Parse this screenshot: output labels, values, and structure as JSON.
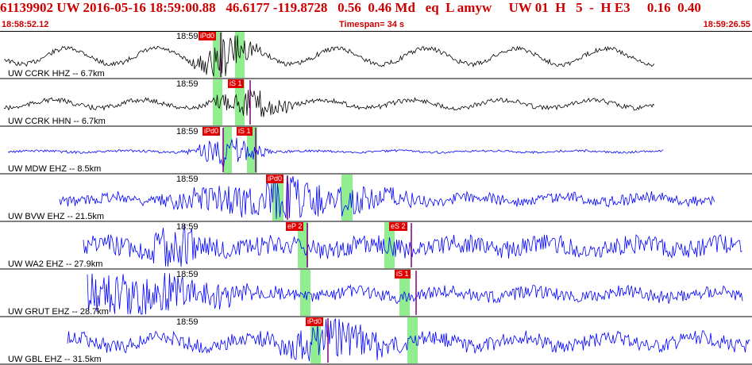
{
  "header": {
    "event_line": "61139902 UW 2016-05-16 18:59:00.88   46.6177 -119.8728   0.56  0.46 Md   eq  L amyw     UW 01  H   5  -  H E3     0.16  0.40",
    "start_time": "18:58:52.12",
    "timespan": "Timespan=  34 s",
    "end_time": "18:59:26.55"
  },
  "colors": {
    "header": "#cc0000",
    "trace_hz": "#000000",
    "trace_ehz": "#0000ff",
    "pick": "#e00000",
    "window": "#90ee90",
    "pick_line": "#800080"
  },
  "traces": [
    {
      "label": "UW CCRK HHZ -- 6.7km",
      "time": "18:59",
      "color": "#000000",
      "picks": [
        {
          "label": "iPd0"
        }
      ]
    },
    {
      "label": "UW CCRK HHN -- 6.7km",
      "time": "18:59",
      "color": "#000000",
      "picks": [
        {
          "label": "iS 1"
        }
      ]
    },
    {
      "label": "UW MDW EHZ -- 8.5km",
      "time": "18:59",
      "color": "#0000ff",
      "picks": [
        {
          "label": "iPd0"
        },
        {
          "label": "iS 1"
        }
      ]
    },
    {
      "label": "UW BVW EHZ -- 21.5km",
      "time": "18:59",
      "color": "#0000ff",
      "picks": [
        {
          "label": "iPd0"
        }
      ]
    },
    {
      "label": "UW WA2 EHZ -- 27.9km",
      "time": "18:59",
      "color": "#0000ff",
      "picks": [
        {
          "label": "eP 2"
        },
        {
          "label": "eS 2"
        }
      ]
    },
    {
      "label": "UW GRUT EHZ -- 28.7km",
      "time": "18:59",
      "color": "#0000ff",
      "picks": [
        {
          "label": "iS 1"
        }
      ]
    },
    {
      "label": "UW GBL EHZ -- 31.5km",
      "time": "18:59",
      "color": "#0000ff",
      "picks": [
        {
          "label": "iPd0"
        }
      ]
    }
  ]
}
